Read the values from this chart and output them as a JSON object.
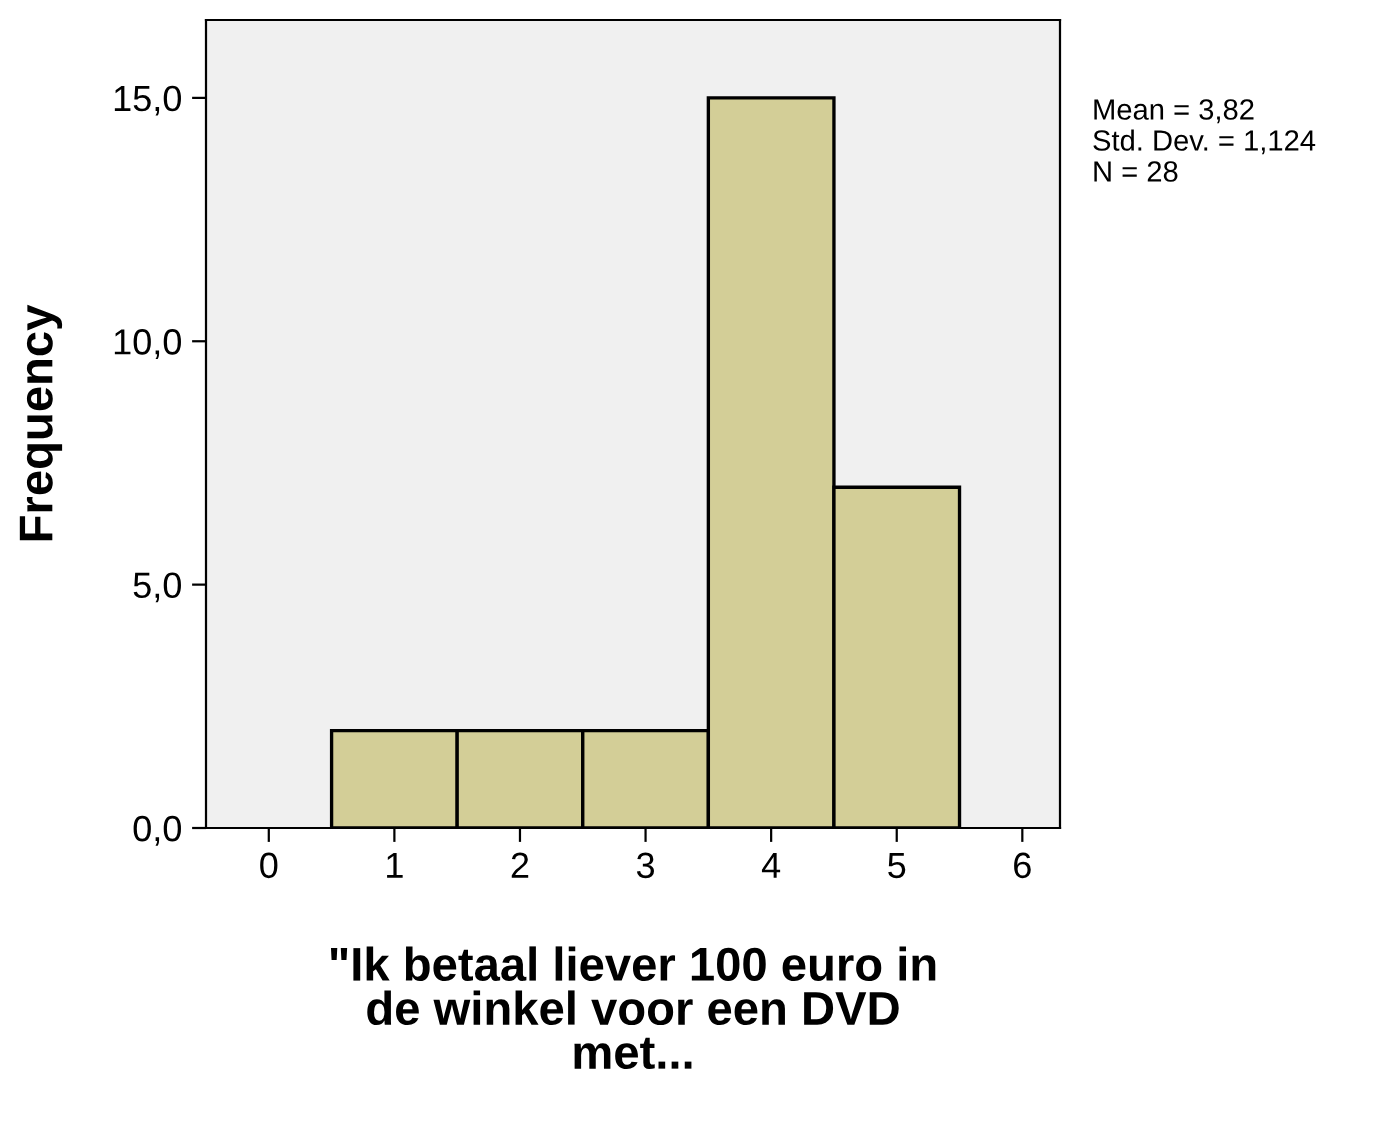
{
  "chart_data": {
    "type": "histogram",
    "bins": [
      0.5,
      1.5,
      2.5,
      3.5,
      4.5,
      5.5
    ],
    "values": [
      2,
      2,
      2,
      15,
      7
    ],
    "color": "#d3ce97",
    "xlabel": "\"Ik betaal liever 100 euro in\nde winkel voor een DVD\nmet...",
    "ylabel": "Frequency",
    "xlim": [
      -0.5,
      6.3
    ],
    "ylim": [
      0,
      16.6
    ],
    "xticks": [
      0,
      1,
      2,
      3,
      4,
      5,
      6
    ],
    "yticks": [
      {
        "value": 0,
        "label": "0,0"
      },
      {
        "value": 5,
        "label": "5,0"
      },
      {
        "value": 10,
        "label": "10,0"
      },
      {
        "value": 15,
        "label": "15,0"
      }
    ],
    "annotations": [
      "Mean = 3,82",
      "Std. Dev. = 1,124",
      "N = 28"
    ],
    "grid": false,
    "legend": false
  }
}
